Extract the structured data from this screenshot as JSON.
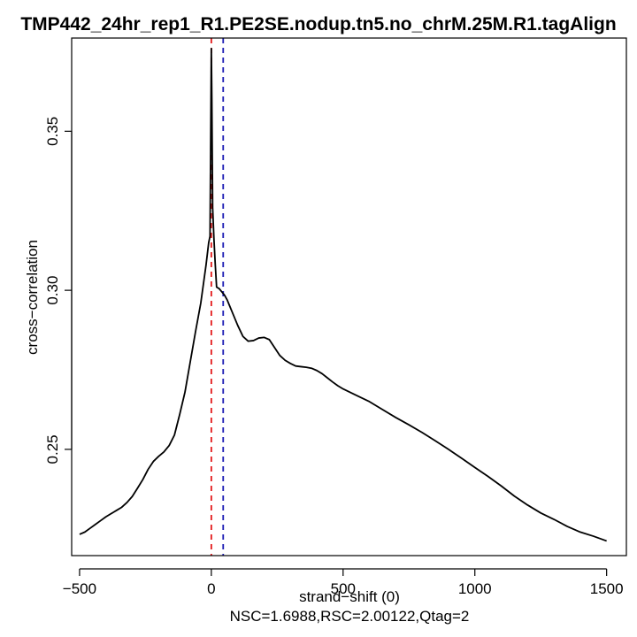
{
  "chart_data": {
    "type": "line",
    "title": "TMP442_24hr_rep1_R1.PE2SE.nodup.tn5.no_chrM.25M.R1.tagAlign",
    "xlabel": "strand−shift (0)",
    "ylabel": "cross−correlation",
    "footer": "NSC=1.6988,RSC=2.00122,Qtag=2",
    "xlim": [
      -530,
      1575
    ],
    "ylim": [
      0.2166,
      0.3793
    ],
    "xticks": [
      -500,
      0,
      500,
      1000,
      1500
    ],
    "xtick_labels": [
      "−500",
      "0",
      "500",
      "1000",
      "1500"
    ],
    "yticks": [
      0.25,
      0.3,
      0.35
    ],
    "ytick_labels": [
      "0.25",
      "0.30",
      "0.35"
    ],
    "grid": false,
    "reference_lines": [
      {
        "x": 0,
        "color": "#e31a1c",
        "style": "dashed"
      },
      {
        "x": 45,
        "color": "#1c1cb4",
        "style": "dashed"
      }
    ],
    "series": [
      {
        "color": "#000000",
        "x": [
          -500,
          -480,
          -460,
          -440,
          -420,
          -400,
          -380,
          -360,
          -340,
          -320,
          -300,
          -280,
          -260,
          -240,
          -220,
          -200,
          -180,
          -160,
          -140,
          -120,
          -100,
          -80,
          -60,
          -40,
          -20,
          -10,
          -5,
          0,
          2,
          5,
          10,
          15,
          20,
          30,
          40,
          50,
          60,
          70,
          80,
          100,
          120,
          140,
          160,
          180,
          200,
          220,
          240,
          260,
          280,
          300,
          320,
          340,
          360,
          380,
          400,
          420,
          440,
          460,
          480,
          500,
          550,
          600,
          650,
          700,
          750,
          800,
          850,
          900,
          950,
          1000,
          1050,
          1100,
          1150,
          1200,
          1250,
          1300,
          1350,
          1400,
          1450,
          1500
        ],
        "y": [
          0.2233,
          0.224,
          0.2252,
          0.2264,
          0.2276,
          0.2288,
          0.2298,
          0.2308,
          0.2318,
          0.2333,
          0.2352,
          0.2378,
          0.2405,
          0.2437,
          0.2462,
          0.2478,
          0.2492,
          0.2512,
          0.2545,
          0.261,
          0.268,
          0.2775,
          0.287,
          0.296,
          0.308,
          0.315,
          0.317,
          0.376,
          0.36,
          0.326,
          0.316,
          0.308,
          0.301,
          0.3005,
          0.2995,
          0.2985,
          0.297,
          0.295,
          0.293,
          0.289,
          0.2855,
          0.284,
          0.2842,
          0.285,
          0.2852,
          0.2845,
          0.282,
          0.2795,
          0.278,
          0.277,
          0.2762,
          0.276,
          0.2758,
          0.2755,
          0.2748,
          0.2738,
          0.2725,
          0.2712,
          0.27,
          0.269,
          0.267,
          0.265,
          0.2625,
          0.26,
          0.2577,
          0.2553,
          0.2527,
          0.25,
          0.2472,
          0.2443,
          0.2415,
          0.2385,
          0.2353,
          0.2325,
          0.23,
          0.228,
          0.2258,
          0.224,
          0.2227,
          0.2212
        ]
      }
    ]
  }
}
